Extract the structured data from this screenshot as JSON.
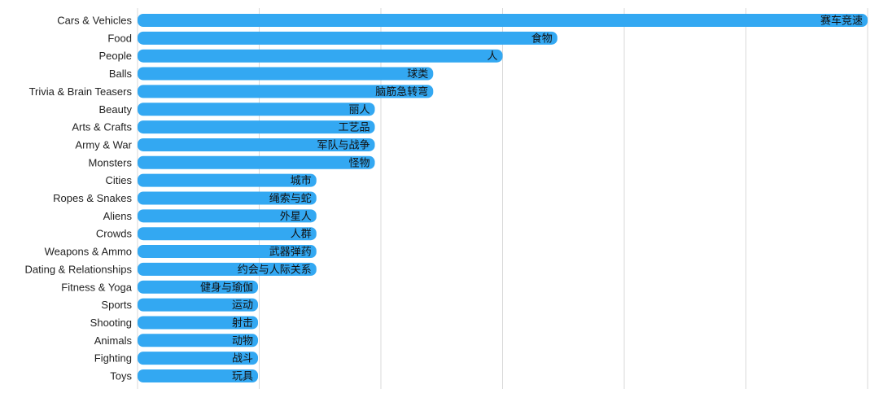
{
  "chart_data": {
    "type": "bar",
    "orientation": "horizontal",
    "title": "",
    "xlabel": "",
    "ylabel": "",
    "grid": true,
    "bar_color": "#33A8F2",
    "grid_color": "#D9D9D9",
    "xlim": [
      0,
      100
    ],
    "categories": [
      "Cars & Vehicles",
      "Food",
      "People",
      "Balls",
      "Trivia & Brain Teasers",
      "Beauty",
      "Arts & Crafts",
      "Army & War",
      "Monsters",
      "Cities",
      "Ropes & Snakes",
      "Aliens",
      "Crowds",
      "Weapons & Ammo",
      "Dating & Relationships",
      "Fitness & Yoga",
      "Sports",
      "Shooting",
      "Animals",
      "Fighting",
      "Toys"
    ],
    "bar_labels": [
      "赛车竞速",
      "食物",
      "人",
      "球类",
      "脑筋急转弯",
      "丽人",
      "工艺品",
      "军队与战争",
      "怪物",
      "城市",
      "绳索与蛇",
      "外星人",
      "人群",
      "武器弹药",
      "约会与人际关系",
      "健身与瑜伽",
      "运动",
      "射击",
      "动物",
      "战斗",
      "玩具"
    ],
    "values": [
      100,
      57.5,
      50,
      40.5,
      40.5,
      32.5,
      32.5,
      32.5,
      32.5,
      24.5,
      24.5,
      24.5,
      24.5,
      24.5,
      24.5,
      16.5,
      16.5,
      16.5,
      16.5,
      16.5,
      16.5
    ]
  }
}
